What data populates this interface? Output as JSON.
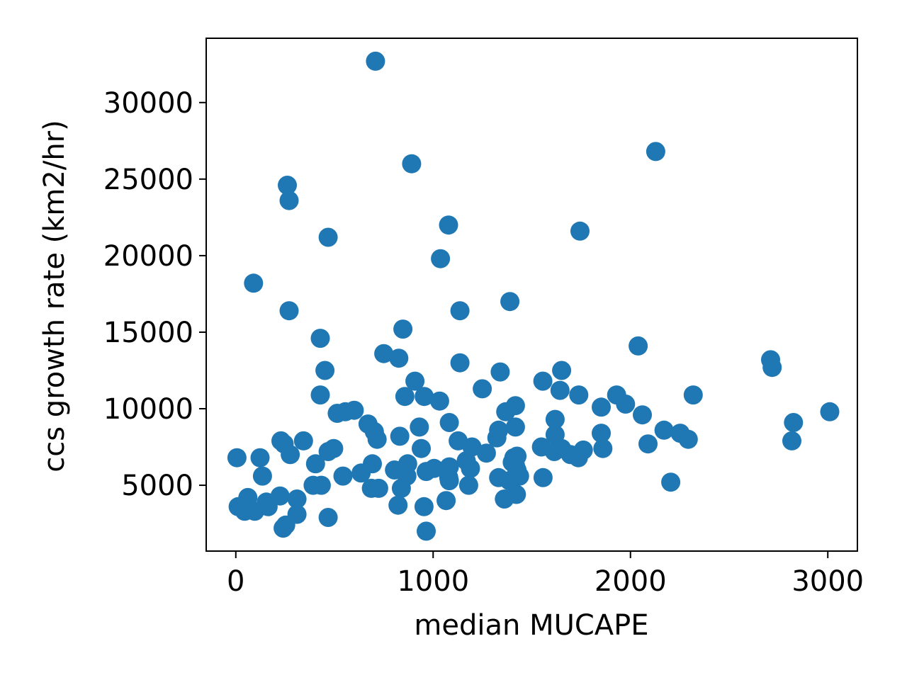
{
  "chart_data": {
    "type": "scatter",
    "xlabel": "median MUCAPE",
    "ylabel": "ccs growth rate (km2/hr)",
    "xlim": [
      -150,
      3150
    ],
    "ylim": [
      700,
      34200
    ],
    "xticks": [
      0,
      1000,
      2000,
      3000
    ],
    "yticks": [
      5000,
      10000,
      15000,
      20000,
      25000,
      30000
    ],
    "grid": false,
    "marker_color": "#1f77b4",
    "points": [
      [
        708,
        32700
      ],
      [
        2128,
        26800
      ],
      [
        891,
        26000
      ],
      [
        261,
        24600
      ],
      [
        270,
        23600
      ],
      [
        1078,
        22000
      ],
      [
        1744,
        21600
      ],
      [
        468,
        21200
      ],
      [
        1037,
        19800
      ],
      [
        90,
        18200
      ],
      [
        1389,
        17000
      ],
      [
        270,
        16400
      ],
      [
        1136,
        16400
      ],
      [
        847,
        15200
      ],
      [
        428,
        14600
      ],
      [
        2039,
        14100
      ],
      [
        750,
        13600
      ],
      [
        826,
        13300
      ],
      [
        1136,
        13000
      ],
      [
        2710,
        13200
      ],
      [
        2718,
        12700
      ],
      [
        452,
        12500
      ],
      [
        1340,
        12400
      ],
      [
        1651,
        12500
      ],
      [
        908,
        11800
      ],
      [
        1556,
        11800
      ],
      [
        1249,
        11300
      ],
      [
        1643,
        11200
      ],
      [
        428,
        10900
      ],
      [
        857,
        10800
      ],
      [
        955,
        10800
      ],
      [
        1033,
        10500
      ],
      [
        1738,
        10900
      ],
      [
        1930,
        10900
      ],
      [
        1975,
        10300
      ],
      [
        2318,
        10900
      ],
      [
        1417,
        10200
      ],
      [
        1852,
        10100
      ],
      [
        514,
        9700
      ],
      [
        555,
        9800
      ],
      [
        600,
        9900
      ],
      [
        1368,
        9800
      ],
      [
        2060,
        9600
      ],
      [
        3010,
        9800
      ],
      [
        1082,
        9100
      ],
      [
        1618,
        9300
      ],
      [
        2826,
        9100
      ],
      [
        670,
        9000
      ],
      [
        702,
        8500
      ],
      [
        930,
        8800
      ],
      [
        1417,
        8800
      ],
      [
        1332,
        8600
      ],
      [
        1618,
        8300
      ],
      [
        1852,
        8400
      ],
      [
        2170,
        8600
      ],
      [
        2252,
        8400
      ],
      [
        716,
        8000
      ],
      [
        831,
        8200
      ],
      [
        1127,
        7900
      ],
      [
        1323,
        8100
      ],
      [
        2293,
        8000
      ],
      [
        2818,
        7900
      ],
      [
        229,
        7900
      ],
      [
        343,
        7900
      ],
      [
        245,
        7700
      ],
      [
        2089,
        7700
      ],
      [
        940,
        7400
      ],
      [
        1549,
        7500
      ],
      [
        1614,
        7200
      ],
      [
        1651,
        7400
      ],
      [
        1696,
        7000
      ],
      [
        1860,
        7400
      ],
      [
        1736,
        6800
      ],
      [
        1761,
        7300
      ],
      [
        1197,
        7500
      ],
      [
        1270,
        7100
      ],
      [
        1409,
        6800
      ],
      [
        1425,
        6900
      ],
      [
        1168,
        6600
      ],
      [
        1401,
        6500
      ],
      [
        496,
        7400
      ],
      [
        468,
        7200
      ],
      [
        276,
        7000
      ],
      [
        6,
        6800
      ],
      [
        123,
        6800
      ],
      [
        404,
        6400
      ],
      [
        692,
        6400
      ],
      [
        871,
        6400
      ],
      [
        1005,
        6100
      ],
      [
        1082,
        6200
      ],
      [
        1189,
        6100
      ],
      [
        1417,
        6300
      ],
      [
        804,
        6000
      ],
      [
        635,
        5800
      ],
      [
        965,
        5900
      ],
      [
        1425,
        6000
      ],
      [
        135,
        5600
      ],
      [
        543,
        5600
      ],
      [
        867,
        5600
      ],
      [
        1079,
        5500
      ],
      [
        1332,
        5500
      ],
      [
        1438,
        5600
      ],
      [
        1557,
        5500
      ],
      [
        1386,
        5300
      ],
      [
        1082,
        5300
      ],
      [
        1180,
        5000
      ],
      [
        2204,
        5200
      ],
      [
        392,
        5000
      ],
      [
        433,
        5000
      ],
      [
        687,
        4800
      ],
      [
        724,
        4800
      ],
      [
        839,
        4800
      ],
      [
        61,
        4200
      ],
      [
        224,
        4300
      ],
      [
        155,
        3900
      ],
      [
        310,
        4100
      ],
      [
        822,
        3700
      ],
      [
        954,
        3600
      ],
      [
        1066,
        4000
      ],
      [
        1361,
        4100
      ],
      [
        1422,
        4400
      ],
      [
        12,
        3600
      ],
      [
        45,
        3300
      ],
      [
        96,
        3300
      ],
      [
        164,
        3600
      ],
      [
        310,
        3100
      ],
      [
        468,
        2900
      ],
      [
        253,
        2400
      ],
      [
        240,
        2200
      ],
      [
        965,
        2000
      ]
    ]
  }
}
